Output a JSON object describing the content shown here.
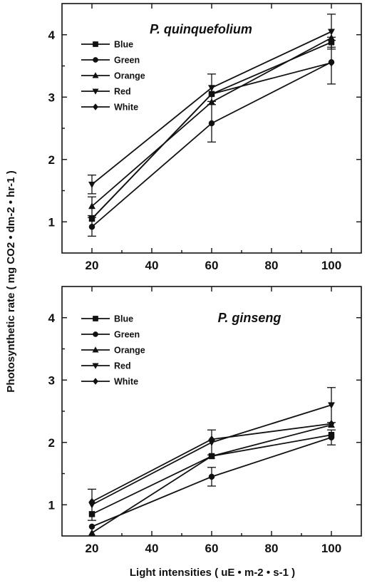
{
  "figure": {
    "ylabel": "Photosynthetic rate ( mg CO2 • dm-2 • hr-1 )",
    "xlabel": "Light intensities ( uE • m-2 • s-1 )"
  },
  "chart_data": [
    {
      "type": "line",
      "title": "P. quinquefolium",
      "x": [
        20,
        60,
        100
      ],
      "xlim": [
        10,
        110
      ],
      "ylim": [
        0.5,
        4.5
      ],
      "xticks": [
        20,
        40,
        60,
        80,
        100
      ],
      "yticks": [
        1,
        2,
        3,
        4
      ],
      "legend_position": "top-left",
      "grid": false,
      "series": [
        {
          "name": "Blue",
          "marker": "square",
          "values": [
            1.05,
            3.05,
            3.88
          ],
          "errors": [
            0.0,
            0.0,
            0.08
          ]
        },
        {
          "name": "Green",
          "marker": "circle",
          "values": [
            0.92,
            2.58,
            3.56
          ],
          "errors": [
            0.15,
            0.3,
            0.35
          ]
        },
        {
          "name": "Orange",
          "marker": "triangle-up",
          "values": [
            1.25,
            2.92,
            3.95
          ],
          "errors": [
            0.15,
            0.0,
            0.0
          ]
        },
        {
          "name": "Red",
          "marker": "triangle-down",
          "values": [
            1.6,
            3.15,
            4.05
          ],
          "errors": [
            0.15,
            0.22,
            0.28
          ]
        },
        {
          "name": "White",
          "marker": "diamond",
          "values": [
            1.05,
            3.05,
            3.55
          ],
          "errors": [
            0.0,
            0.0,
            0.0
          ]
        }
      ]
    },
    {
      "type": "line",
      "title": "P. ginseng",
      "x": [
        20,
        60,
        100
      ],
      "xlim": [
        10,
        110
      ],
      "ylim": [
        0.5,
        4.5
      ],
      "xticks": [
        20,
        40,
        60,
        80,
        100
      ],
      "yticks": [
        1,
        2,
        3,
        4
      ],
      "legend_position": "top-left",
      "grid": false,
      "series": [
        {
          "name": "Blue",
          "marker": "square",
          "values": [
            0.85,
            1.78,
            2.12
          ],
          "errors": [
            0.0,
            0.0,
            0.0
          ]
        },
        {
          "name": "Green",
          "marker": "circle",
          "values": [
            0.65,
            1.45,
            2.08
          ],
          "errors": [
            0.0,
            0.15,
            0.12
          ]
        },
        {
          "name": "Orange",
          "marker": "triangle-up",
          "values": [
            0.55,
            1.78,
            2.28
          ],
          "errors": [
            0.0,
            0.0,
            0.0
          ]
        },
        {
          "name": "Red",
          "marker": "triangle-down",
          "values": [
            1.0,
            2.0,
            2.6
          ],
          "errors": [
            0.25,
            0.2,
            0.28
          ]
        },
        {
          "name": "White",
          "marker": "diamond",
          "values": [
            1.05,
            2.05,
            2.3
          ],
          "errors": [
            0.0,
            0.0,
            0.0
          ]
        }
      ]
    }
  ]
}
